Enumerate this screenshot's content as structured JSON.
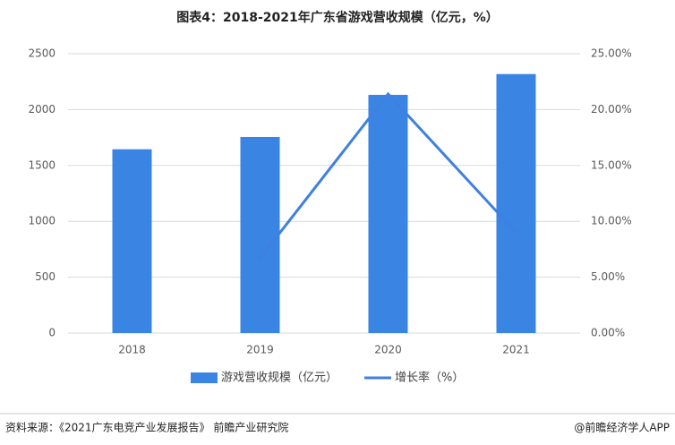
{
  "chart_data": {
    "type": "bar",
    "title": "图表4：2018-2021年广东省游戏营收规模（亿元，%）",
    "categories": [
      "2018",
      "2019",
      "2020",
      "2021"
    ],
    "series": [
      {
        "name": "游戏营收规模（亿元）",
        "type": "bar",
        "color": "#3a84e3",
        "values": [
          1645,
          1755,
          2132,
          2318
        ]
      },
      {
        "name": "增长率（%）",
        "type": "line",
        "axis": "y2",
        "color": "#3f80e0",
        "values": [
          null,
          6.7,
          21.4,
          9.0
        ]
      }
    ],
    "ylim": [
      0,
      2500
    ],
    "yticks": [
      0,
      500,
      1000,
      1500,
      2000,
      2500
    ],
    "y2lim": [
      0,
      25
    ],
    "y2ticks": [
      {
        "value": 0,
        "label": "0.00%"
      },
      {
        "value": 5,
        "label": "5.00%"
      },
      {
        "value": 10,
        "label": "10.00%"
      },
      {
        "value": 15,
        "label": "15.00%"
      },
      {
        "value": 20,
        "label": "20.00%"
      },
      {
        "value": 25,
        "label": "25.00%"
      }
    ],
    "grid": true,
    "legend": "bottom"
  },
  "footer": {
    "source": "资料来源：《2021广东电竞产业发展报告》 前瞻产业研究院",
    "credit": "@前瞻经济学人APP"
  }
}
